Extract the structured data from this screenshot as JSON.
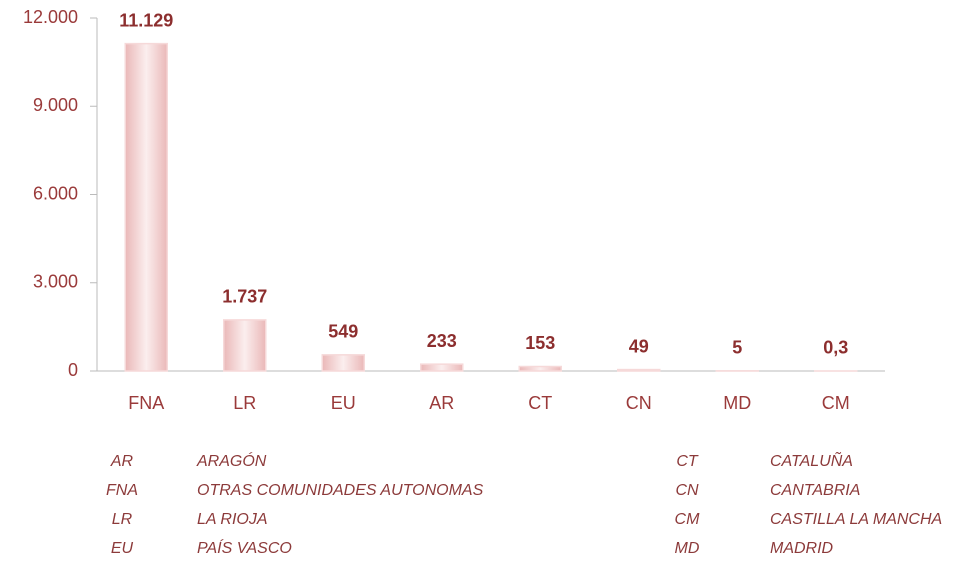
{
  "chart_data": {
    "type": "bar",
    "categories": [
      "FNA",
      "LR",
      "EU",
      "AR",
      "CT",
      "CN",
      "MD",
      "CM"
    ],
    "values": [
      11129,
      1737,
      549,
      233,
      153,
      49,
      5,
      0.3
    ],
    "value_labels": [
      "11.129",
      "1.737",
      "549",
      "233",
      "153",
      "49",
      "5",
      "0,3"
    ],
    "color": "#f6d9d9",
    "ylim": [
      0,
      12000
    ],
    "yticks": [
      0,
      {
        "value": 3000,
        "label": "3.000"
      },
      {
        "value": 6000,
        "label": "6.000"
      },
      {
        "value": 9000,
        "label": "9.000"
      },
      {
        "value": 12000,
        "label": "12.000"
      }
    ],
    "key": [
      [
        {
          "code": "AR",
          "name": "ARAGÓN"
        },
        {
          "code": "CT",
          "name": "CATALUÑA"
        }
      ],
      [
        {
          "code": "FNA",
          "name": "OTRAS COMUNIDADES AUTONOMAS"
        },
        {
          "code": "CN",
          "name": "CANTABRIA"
        }
      ],
      [
        {
          "code": "LR",
          "name": "LA RIOJA"
        },
        {
          "code": "CM",
          "name": "CASTILLA LA MANCHA"
        }
      ],
      [
        {
          "code": "EU",
          "name": "PAÍS VASCO"
        },
        {
          "code": "MD",
          "name": "MADRID"
        }
      ]
    ]
  }
}
